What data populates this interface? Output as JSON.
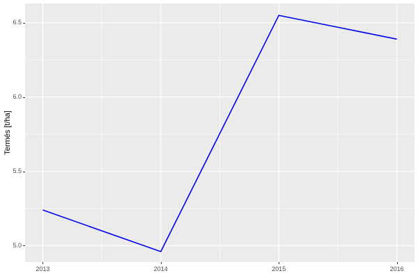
{
  "chart_data": {
    "type": "line",
    "title": "",
    "xlabel": "",
    "ylabel": "Termés [t/ha]",
    "x": [
      2013,
      2014,
      2015,
      2016
    ],
    "series": [
      {
        "name": "Termés [t/ha]",
        "values": [
          5.24,
          4.96,
          6.55,
          6.39
        ],
        "color": "#0000ee"
      }
    ],
    "xticks": {
      "values": [
        2013,
        2014,
        2015,
        2016
      ],
      "labels": [
        "2013",
        "2014",
        "2015",
        "2016"
      ]
    },
    "yticks": {
      "values": [
        5.0,
        5.5,
        6.0,
        6.5
      ],
      "labels": [
        "5.0",
        "5.5",
        "6.0",
        "6.5"
      ]
    },
    "xlim": [
      2012.85,
      2016.15
    ],
    "ylim": [
      4.89,
      6.63
    ],
    "grid": {
      "major": true,
      "minor": true,
      "color": "#ffffff"
    },
    "legend_position": "none",
    "theme": {
      "panel_background": "#ebebeb",
      "plot_background": "#ffffff",
      "tick_label_color": "#4d4d4d",
      "axis_title_color": "#000000",
      "tick_mark_color": "#333333"
    }
  }
}
